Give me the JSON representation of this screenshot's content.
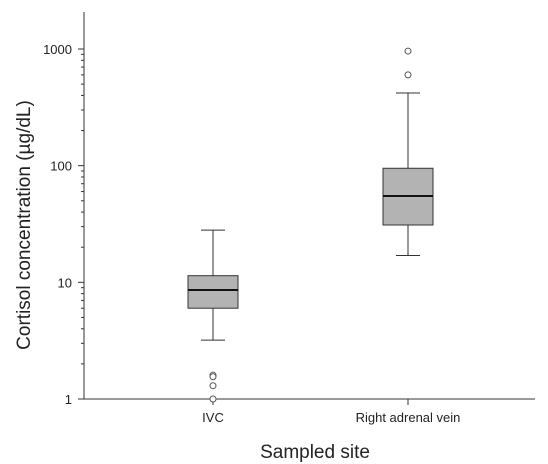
{
  "chart_data": {
    "type": "boxplot",
    "xlabel": "Sampled site",
    "ylabel": "Cortisol concentration (µg/dL)",
    "yscale": "log",
    "ylim": [
      1,
      2000
    ],
    "yticks": [
      1,
      10,
      100,
      1000
    ],
    "ytick_labels": [
      "1",
      "10",
      "100",
      "1000"
    ],
    "grid": false,
    "box_color": "#b3b3b3",
    "categories": [
      "IVC",
      "Right adrenal vein"
    ],
    "boxes": [
      {
        "category": "IVC",
        "whisker_low": 3.2,
        "q1": 6.0,
        "median": 8.6,
        "q3": 11.4,
        "whisker_high": 28,
        "outliers": [
          1.6,
          1.55,
          1.3,
          1.0
        ]
      },
      {
        "category": "Right adrenal vein",
        "whisker_low": 17,
        "q1": 31,
        "median": 55,
        "q3": 95,
        "whisker_high": 420,
        "outliers": [
          600,
          960
        ]
      }
    ]
  }
}
